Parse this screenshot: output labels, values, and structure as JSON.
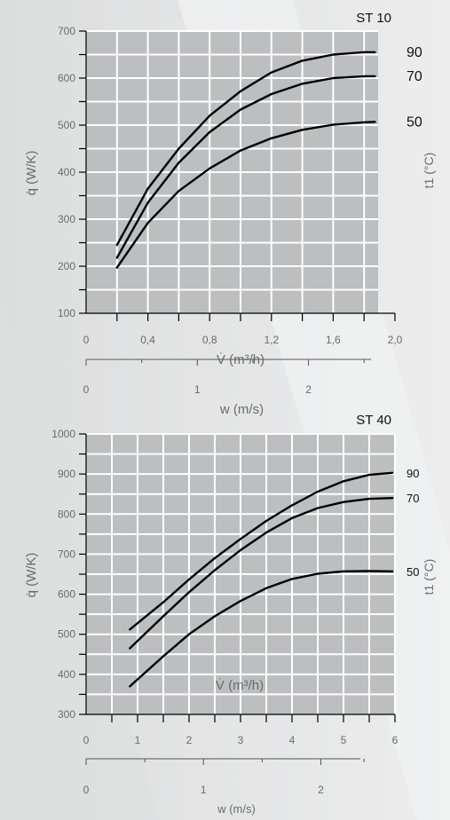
{
  "colors": {
    "background": "#e9eaea",
    "plot_area": "#bdbebf",
    "grid": "#ffffff",
    "curve": "#000000",
    "axis_text": "#6b6b6b"
  },
  "chart_data": [
    {
      "type": "line",
      "title": "ST 10",
      "xlabel": "V̇ (m³/h)",
      "ylabel": "q̇ (W/K)",
      "right_label": "t1 (°C)",
      "xlim": [
        0,
        2.0
      ],
      "ylim": [
        100,
        700
      ],
      "x_ticks": [
        "0",
        "0,4",
        "0,8",
        "1,2",
        "1,6",
        "2,0"
      ],
      "y_ticks": [
        "100",
        "200",
        "300",
        "400",
        "500",
        "600",
        "700"
      ],
      "grid": true,
      "series": [
        {
          "name": "90",
          "x": [
            0.2,
            0.4,
            0.6,
            0.8,
            1.0,
            1.2,
            1.4,
            1.6,
            1.8,
            1.87
          ],
          "y": [
            245,
            365,
            450,
            520,
            572,
            612,
            637,
            650,
            655,
            655
          ]
        },
        {
          "name": "70",
          "x": [
            0.2,
            0.4,
            0.6,
            0.8,
            1.0,
            1.2,
            1.4,
            1.6,
            1.8,
            1.87
          ],
          "y": [
            218,
            335,
            420,
            485,
            533,
            566,
            588,
            600,
            604,
            604
          ]
        },
        {
          "name": "50",
          "x": [
            0.2,
            0.4,
            0.6,
            0.8,
            1.0,
            1.2,
            1.4,
            1.6,
            1.8,
            1.87
          ],
          "y": [
            197,
            292,
            360,
            408,
            446,
            472,
            490,
            501,
            506,
            507
          ]
        }
      ],
      "secondary_x": {
        "label": "w (m/s)",
        "ticks": [
          "0",
          "1",
          "2"
        ],
        "ticks_at_primary_x": [
          0,
          0.72,
          1.44
        ],
        "minor_ticks_at_primary_x": [
          0.36,
          1.08,
          1.8
        ]
      }
    },
    {
      "type": "line",
      "title": "ST 40",
      "xlabel": "V̇ (m³/h)",
      "ylabel": "q̇ (W/K)",
      "right_label": "t1 (°C)",
      "xlim": [
        0,
        6
      ],
      "ylim": [
        300,
        1000
      ],
      "x_ticks": [
        "0",
        "1",
        "2",
        "3",
        "4",
        "5",
        "6"
      ],
      "y_ticks": [
        "300",
        "400",
        "500",
        "600",
        "700",
        "800",
        "900",
        "1000"
      ],
      "grid": true,
      "series": [
        {
          "name": "90",
          "x": [
            0.85,
            1.5,
            2.0,
            2.5,
            3.0,
            3.5,
            4.0,
            4.5,
            5.0,
            5.5,
            5.95
          ],
          "y": [
            512,
            580,
            637,
            690,
            738,
            783,
            822,
            856,
            882,
            898,
            903
          ]
        },
        {
          "name": "70",
          "x": [
            0.85,
            1.5,
            2.0,
            2.5,
            3.0,
            3.5,
            4.0,
            4.5,
            5.0,
            5.5,
            5.95
          ],
          "y": [
            465,
            545,
            605,
            660,
            710,
            754,
            790,
            815,
            830,
            838,
            840
          ]
        },
        {
          "name": "50",
          "x": [
            0.85,
            1.5,
            2.0,
            2.5,
            3.0,
            3.5,
            4.0,
            4.5,
            5.0,
            5.5,
            5.95
          ],
          "y": [
            370,
            445,
            500,
            545,
            583,
            615,
            638,
            651,
            657,
            658,
            657
          ]
        }
      ],
      "secondary_x": {
        "label": "w (m/s)",
        "ticks": [
          "0",
          "1",
          "2"
        ],
        "ticks_at_primary_x": [
          0,
          2.28,
          4.56
        ],
        "minor_ticks_at_primary_x": [
          1.14,
          3.42,
          5.4
        ]
      }
    }
  ]
}
